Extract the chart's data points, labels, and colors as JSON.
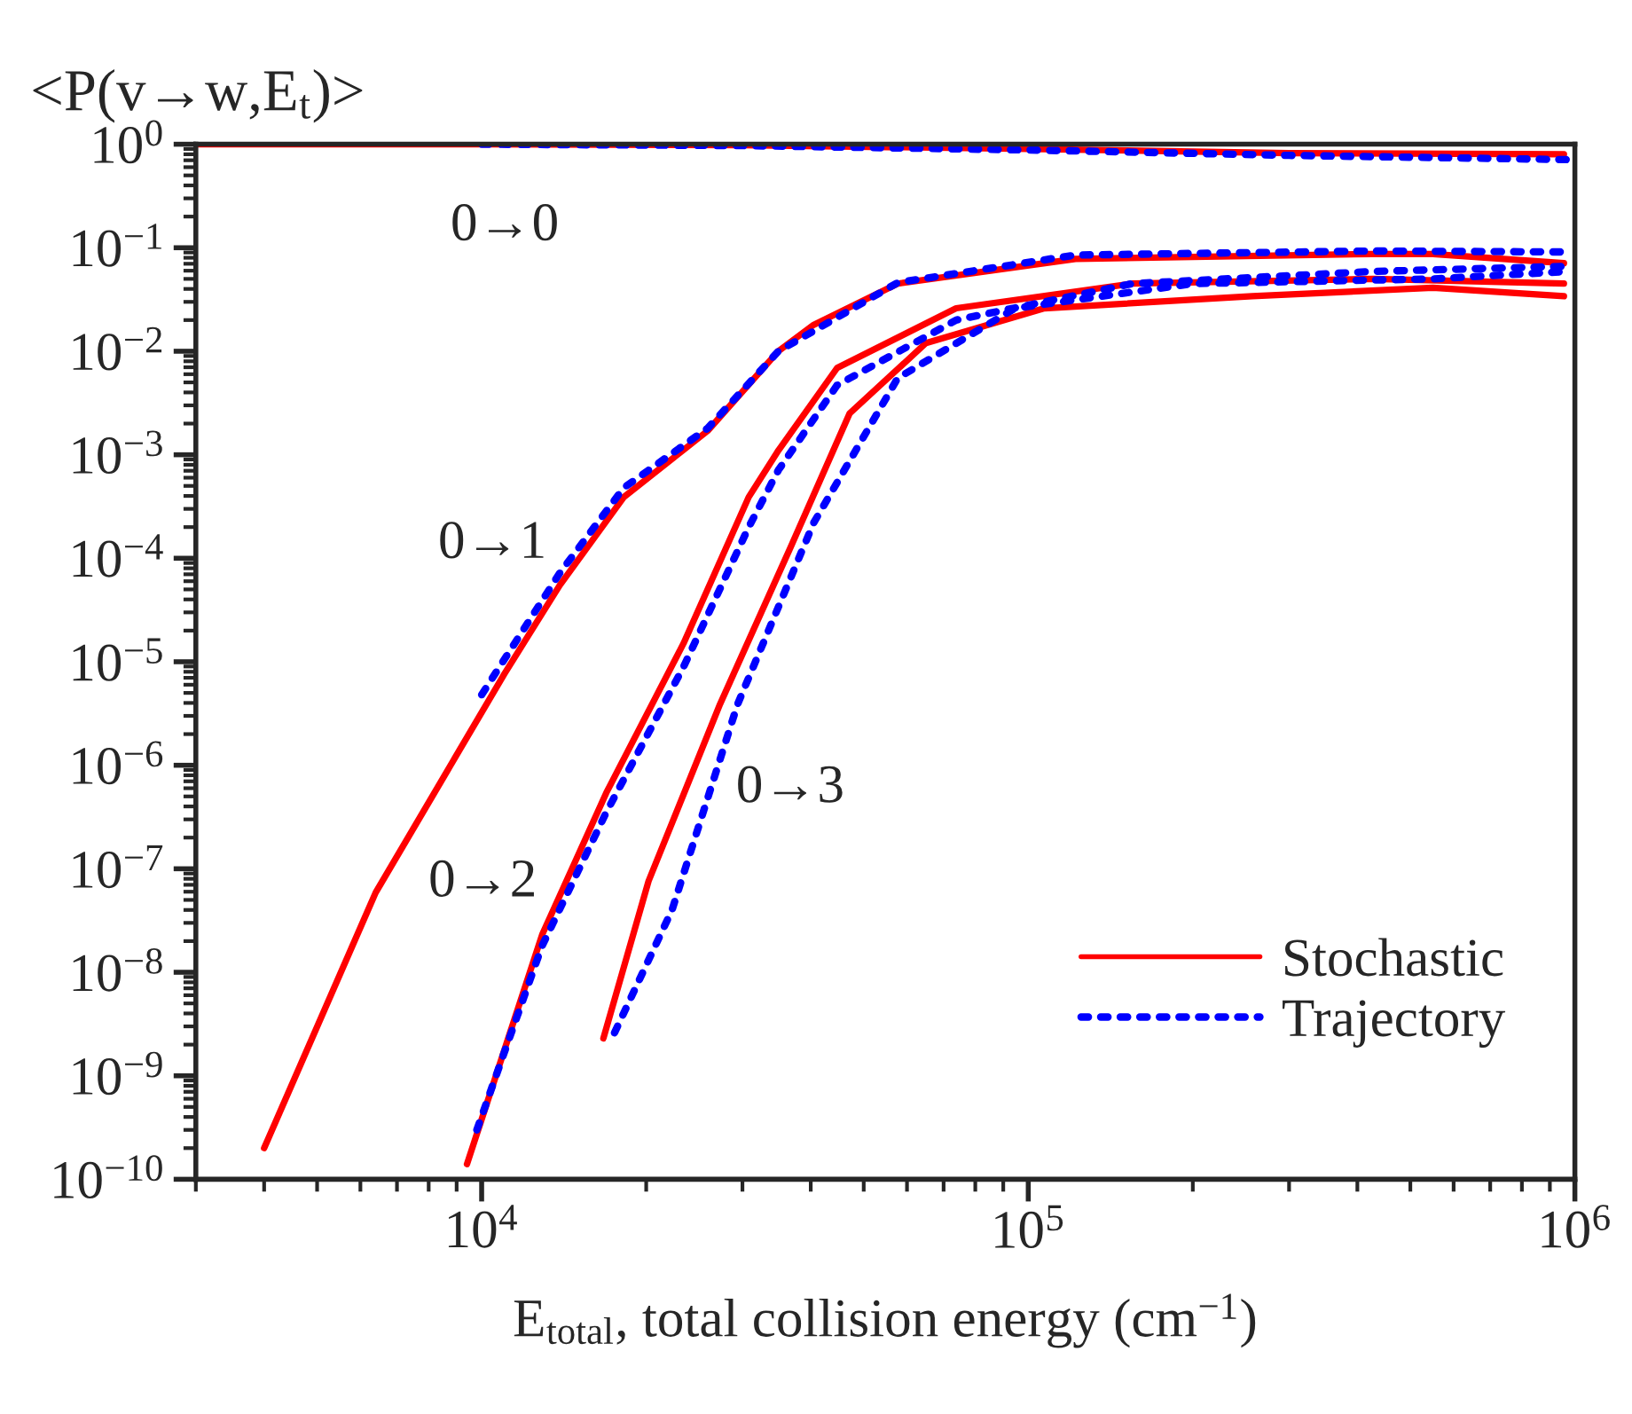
{
  "chart_data": {
    "type": "line",
    "ylabel": "<P(v→w,E$_{t}$)>",
    "xlabel": "E$_{total}$, total collision energy (cm$^{−1}$)",
    "log": "xy",
    "grid": false,
    "legend": "bottom right",
    "marker": "none",
    "xlim": [
      3000,
      1000000
    ],
    "ylim": [
      1e-10,
      1
    ],
    "xticks": [
      {
        "value": 10000,
        "label": "10$^{4}$"
      },
      {
        "value": 100000,
        "label": "10$^{5}$"
      },
      {
        "value": 1000000,
        "label": "10$^{6}$"
      }
    ],
    "yticks": [
      {
        "value": 1,
        "label": "10$^{0}$"
      },
      {
        "value": 0.1,
        "label": "10$^{−1}$"
      },
      {
        "value": 0.01,
        "label": "10$^{−2}$"
      },
      {
        "value": 0.001,
        "label": "10$^{−3}$"
      },
      {
        "value": 0.0001,
        "label": "10$^{−4}$"
      },
      {
        "value": 1e-05,
        "label": "10$^{−5}$"
      },
      {
        "value": 1e-06,
        "label": "10$^{−6}$"
      },
      {
        "value": 1e-07,
        "label": "10$^{−7}$"
      },
      {
        "value": 1e-08,
        "label": "10$^{−8}$"
      },
      {
        "value": 1e-09,
        "label": "10$^{−9}$"
      },
      {
        "value": 1e-10,
        "label": "10$^{−10}$"
      }
    ],
    "series": [
      {
        "name": "Stochastic",
        "color": "#ff0000",
        "line_style": "solid",
        "x": [
          3000,
          10000,
          30000,
          100000,
          300000,
          955000
        ],
        "values": [
          1,
          1,
          0.98,
          0.9,
          0.82,
          0.8
        ]
      },
      {
        "color": "#ff0000",
        "line_style": "solid",
        "x": [
          4000,
          6400,
          11000,
          13900,
          18200,
          25900,
          34900,
          40500,
          57700,
          122000,
          427000,
          550000,
          955000
        ],
        "values": [
          2e-10,
          5.9e-08,
          7.6e-06,
          5.5e-05,
          0.00039,
          0.0017,
          0.01,
          0.018,
          0.045,
          0.078,
          0.087,
          0.087,
          0.071
        ]
      },
      {
        "color": "#ff0000",
        "line_style": "solid",
        "x": [
          9400,
          12900,
          16900,
          23400,
          30800,
          34900,
          44700,
          73800,
          155000,
          427000,
          955000
        ],
        "values": [
          1.4e-10,
          2.3e-08,
          5.4e-07,
          1.5e-05,
          0.00039,
          0.0011,
          0.0069,
          0.026,
          0.045,
          0.05,
          0.045
        ]
      },
      {
        "color": "#ff0000",
        "line_style": "solid",
        "x": [
          16700,
          20200,
          27300,
          36800,
          47100,
          65000,
          107000,
          257000,
          550000,
          955000
        ],
        "values": [
          2.3e-09,
          7.6e-08,
          3.9e-06,
          0.00013,
          0.0025,
          0.012,
          0.026,
          0.034,
          0.041,
          0.034
        ]
      },
      {
        "name": "Trajectory",
        "color": "#0000ff",
        "line_style": "dotted",
        "x": [
          10000,
          30000,
          100000,
          300000,
          970000
        ],
        "values": [
          1,
          0.97,
          0.88,
          0.78,
          0.71
        ]
      },
      {
        "color": "#0000ff",
        "line_style": "dotted",
        "x": [
          10000,
          13900,
          18200,
          25900,
          34900,
          57700,
          122000,
          427000,
          955000
        ],
        "values": [
          4.8e-06,
          7.2e-05,
          0.00048,
          0.0018,
          0.01,
          0.046,
          0.085,
          0.093,
          0.091
        ]
      },
      {
        "color": "#0000ff",
        "line_style": "dotted",
        "x": [
          9800,
          12900,
          16900,
          23400,
          30800,
          34900,
          44700,
          73800,
          155000,
          427000,
          955000
        ],
        "values": [
          3e-10,
          1.8e-08,
          3.5e-07,
          8.9e-06,
          0.0002,
          0.00071,
          0.0047,
          0.02,
          0.045,
          0.059,
          0.066
        ]
      },
      {
        "color": "#0000ff",
        "line_style": "dotted",
        "x": [
          17500,
          22300,
          29400,
          40500,
          57700,
          94600,
          200000,
          550000,
          970000
        ],
        "values": [
          2.6e-09,
          4e-08,
          3.9e-06,
          0.00022,
          0.0055,
          0.026,
          0.045,
          0.05,
          0.059
        ]
      }
    ],
    "annotations": [
      "0→0",
      "0→1",
      "0→2",
      "0→3"
    ]
  }
}
